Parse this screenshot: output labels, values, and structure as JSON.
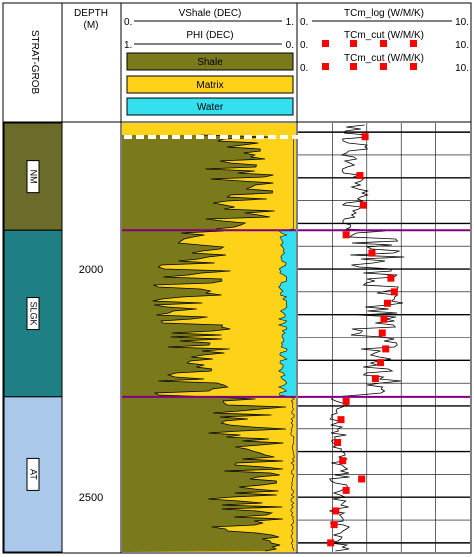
{
  "tracks": {
    "strat": {
      "header": "STRAT-GROB",
      "zones": [
        {
          "label": "NM",
          "top": 1680,
          "bottom": 1915,
          "color": "#6b6b2a"
        },
        {
          "label": "SLGK",
          "top": 1915,
          "bottom": 2280,
          "color": "#1e7f84"
        },
        {
          "label": "AT",
          "top": 2280,
          "bottom": 2620,
          "color": "#a9c8ea"
        }
      ]
    },
    "depth": {
      "header": "DEPTH",
      "unit": "(M)",
      "tick_labels": [
        "2000",
        "2500"
      ]
    },
    "lithology": {
      "curves": [
        {
          "name": "VShale (DEC)",
          "left_value": "0.",
          "right_value": "1."
        },
        {
          "name": "PHI (DEC)",
          "left_value": "1.",
          "right_value": "0."
        }
      ],
      "legend": [
        {
          "label": "Shale",
          "color": "#7a7a1c"
        },
        {
          "label": "Matrix",
          "color": "#ffd21a"
        },
        {
          "label": "Water",
          "color": "#33e0f0"
        }
      ]
    },
    "conductivity": {
      "curves": [
        {
          "name": "TCm_log (W/M/K)",
          "left_value": "0.",
          "right_value": "10."
        },
        {
          "name": "TCm_cut (W/M/K)",
          "left_value": "0.",
          "right_value": "10."
        },
        {
          "name": "TCm_cut (W/M/K)",
          "left_value": "0.",
          "right_value": "10."
        }
      ]
    }
  },
  "chart_data": {
    "type": "line",
    "depth_range": [
      1680,
      2620
    ],
    "depth_unit": "M",
    "formation_boundaries": [
      1915,
      2280
    ],
    "colors": {
      "shale": "#7a7a1c",
      "matrix": "#ffd21a",
      "water": "#33e0f0",
      "log_line": "#000000",
      "cut_marker": "#ff0000",
      "boundary": "#800080"
    },
    "tcm_cut_samples": [
      {
        "depth": 1710,
        "value": 3.9
      },
      {
        "depth": 1795,
        "value": 3.6
      },
      {
        "depth": 1860,
        "value": 3.8
      },
      {
        "depth": 1925,
        "value": 2.8
      },
      {
        "depth": 1965,
        "value": 4.3
      },
      {
        "depth": 2020,
        "value": 5.4
      },
      {
        "depth": 2050,
        "value": 5.6
      },
      {
        "depth": 2075,
        "value": 5.2
      },
      {
        "depth": 2110,
        "value": 5.0
      },
      {
        "depth": 2140,
        "value": 4.9
      },
      {
        "depth": 2175,
        "value": 5.1
      },
      {
        "depth": 2205,
        "value": 4.8
      },
      {
        "depth": 2240,
        "value": 4.5
      },
      {
        "depth": 2290,
        "value": 2.8
      },
      {
        "depth": 2330,
        "value": 2.5
      },
      {
        "depth": 2380,
        "value": 2.3
      },
      {
        "depth": 2420,
        "value": 2.6
      },
      {
        "depth": 2460,
        "value": 3.7
      },
      {
        "depth": 2485,
        "value": 2.8
      },
      {
        "depth": 2530,
        "value": 2.2
      },
      {
        "depth": 2560,
        "value": 2.1
      },
      {
        "depth": 2600,
        "value": 1.9
      }
    ]
  }
}
